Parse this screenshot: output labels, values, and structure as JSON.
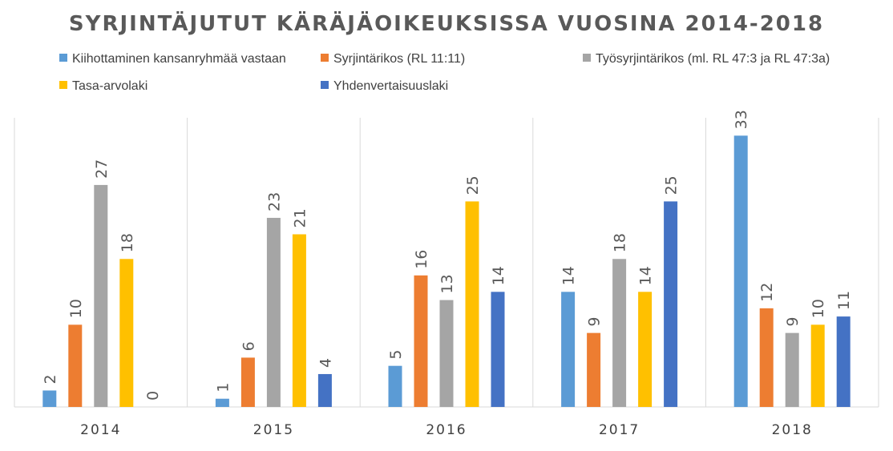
{
  "chart_data": {
    "type": "bar",
    "title": "SYRJINTÄJUTUT KÄRÄJÄOIKEUKSISSA VUOSINA 2014-2018",
    "categories": [
      "2014",
      "2015",
      "2016",
      "2017",
      "2018"
    ],
    "series": [
      {
        "name": "Kiihottaminen kansanryhmää vastaan",
        "color": "#5B9BD5",
        "values": [
          2,
          1,
          5,
          14,
          33
        ]
      },
      {
        "name": "Syrjintärikos (RL 11:11)",
        "color": "#ED7D31",
        "values": [
          10,
          6,
          16,
          9,
          12
        ]
      },
      {
        "name": "Työsyrjintärikos (ml. RL 47:3 ja RL 47:3a)",
        "color": "#A5A5A5",
        "values": [
          27,
          23,
          13,
          18,
          9
        ]
      },
      {
        "name": "Tasa-arvolaki",
        "color": "#FFC000",
        "values": [
          18,
          21,
          25,
          14,
          10
        ]
      },
      {
        "name": "Yhdenvertaisuuslaki",
        "color": "#4472C4",
        "values": [
          0,
          4,
          14,
          25,
          11
        ]
      }
    ],
    "xlabel": "",
    "ylabel": "",
    "ylim": [
      0,
      35
    ],
    "grid": false,
    "legend_position": "top",
    "data_labels": true
  }
}
